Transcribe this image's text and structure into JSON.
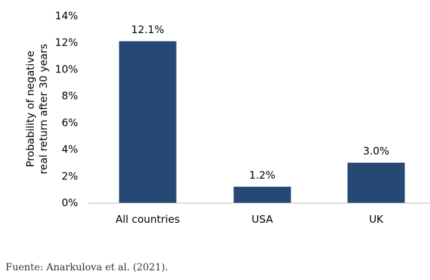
{
  "chart_data": {
    "type": "bar",
    "categories": [
      "All countries",
      "USA",
      "UK"
    ],
    "values": [
      12.1,
      1.2,
      3.0
    ],
    "data_labels": [
      "12.1%",
      "1.2%",
      "3.0%"
    ],
    "title": "",
    "xlabel": "",
    "ylabel_lines": [
      "Probability of negative",
      "real return after 30 years"
    ],
    "ylim": [
      0,
      14
    ],
    "yticks": [
      0,
      2,
      4,
      6,
      8,
      10,
      12,
      14
    ],
    "ytick_labels": [
      "0%",
      "2%",
      "4%",
      "6%",
      "8%",
      "10%",
      "12%",
      "14%"
    ],
    "grid": false,
    "legend": "none",
    "bar_color": "#254874"
  },
  "source_note": "Fuente: Anarkulova et al. (2021)."
}
